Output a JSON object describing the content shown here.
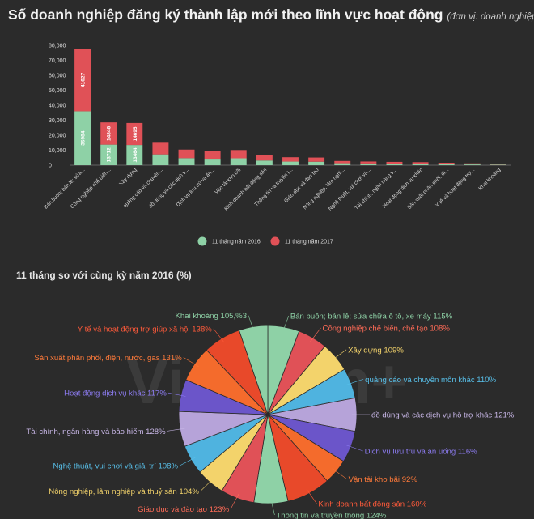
{
  "header": {
    "title": "Số doanh nghiệp đăng ký thành lập mới theo lĩnh vực hoạt động",
    "unit": "(đơn vị: doanh  nghiệp)"
  },
  "pie_title": "11 tháng so với cùng kỳ năm 2016 (%)",
  "watermark": "Vietnam+",
  "colors": {
    "s2016": "#8ed1a6",
    "s2017": "#e05157"
  },
  "chart_data": [
    {
      "type": "bar",
      "stacked": true,
      "categories": [
        "Bán buôn; bán lẻ; sửa...",
        "Công nghiệp chế biến...",
        "Xây dựng",
        "quảng cáo và chuyên...",
        "đồ dùng và các dịch v...",
        "Dịch vụ lưu trú và ăn...",
        "Vận tải kho bãi",
        "Kinh doanh bất động sản",
        "Thông tin và truyền t...",
        "Giáo dục và đào tạo",
        "Nông nghiệp, lâm nghi...",
        "Nghệ thuật, vui chơi và...",
        "Tài chính, ngân hàng v...",
        "Hoạt động dịch vụ khác",
        "Sản xuất phân phối, đi...",
        "Y tế và hoạt động trợ...",
        "Khai khoáng"
      ],
      "series": [
        {
          "name": "11 tháng năm 2016",
          "values": [
            35984,
            13712,
            13464,
            7200,
            4700,
            4300,
            4600,
            3100,
            2400,
            2300,
            1300,
            1150,
            1000,
            900,
            700,
            500,
            400
          ],
          "labels": [
            "35984",
            "13712",
            "13464"
          ]
        },
        {
          "name": "11 tháng năm 2017",
          "values": [
            41627,
            14846,
            14695,
            8300,
            5700,
            5100,
            5500,
            3800,
            2900,
            2800,
            1500,
            1300,
            1200,
            1100,
            900,
            700,
            500
          ],
          "labels": [
            "41627",
            "14846",
            "14695"
          ]
        }
      ],
      "yticks": [
        "0",
        "10,000",
        "20,000",
        "30,000",
        "40,000",
        "50,000",
        "60,000",
        "70,000",
        "80,000"
      ],
      "ylim": [
        0,
        80000
      ],
      "legend_position": "bottom"
    },
    {
      "type": "pie",
      "slices": [
        {
          "label": "Bán buôn; bán lẻ; sửa chữa ô tô, xe máy 115%",
          "value": 115,
          "color": "#8ed1a6",
          "text_color": "#8ed1a6"
        },
        {
          "label": "Công nghiệp chế biến, chế tạo 108%",
          "value": 108,
          "color": "#e05157",
          "text_color": "#ff6b57"
        },
        {
          "label": "Xây dựng 109%",
          "value": 109,
          "color": "#f3d36b",
          "text_color": "#f3d36b"
        },
        {
          "label": "quảng cáo và chuyên môn khác 110%",
          "value": 110,
          "color": "#4fb3df",
          "text_color": "#58c0ea"
        },
        {
          "label": "đồ dùng và các dịch vụ hỗ trợ khác 121%",
          "value": 121,
          "color": "#b6a3d9",
          "text_color": "#c7b6e6"
        },
        {
          "label": "Dịch vụ lưu trú và ăn uống 116%",
          "value": 116,
          "color": "#6b55c9",
          "text_color": "#8d7cf2"
        },
        {
          "label": "Vận tải kho bãi 92%",
          "value": 92,
          "color": "#f46b2c",
          "text_color": "#ff7a3a"
        },
        {
          "label": "Kinh doanh bất động sản 160%",
          "value": 160,
          "color": "#e8492a",
          "text_color": "#ff5a3a"
        },
        {
          "label": "Thông tin và truyền thông 124%",
          "value": 124,
          "color": "#8ed1a6",
          "text_color": "#8ed1a6"
        },
        {
          "label": "Giáo dục và đào tạo 123%",
          "value": 123,
          "color": "#e05157",
          "text_color": "#ff6b57"
        },
        {
          "label": "Nông nghiệp, lâm nghiệp và thuỷ sản 104%",
          "value": 104,
          "color": "#f3d36b",
          "text_color": "#f3d36b"
        },
        {
          "label": "Nghệ thuật, vui chơi và giải trí 108%",
          "value": 108,
          "color": "#4fb3df",
          "text_color": "#58c0ea"
        },
        {
          "label": "Tài chính, ngân hàng và bảo hiểm 128%",
          "value": 128,
          "color": "#b6a3d9",
          "text_color": "#c7b6e6"
        },
        {
          "label": "Hoạt động dịch vụ khác 117%",
          "value": 117,
          "color": "#6b55c9",
          "text_color": "#8d7cf2"
        },
        {
          "label": "Sản xuất phân phối, điện, nước, gas 131%",
          "value": 131,
          "color": "#f46b2c",
          "text_color": "#ff7a3a"
        },
        {
          "label": "Y tế và hoạt động trợ giúp xã hội 138%",
          "value": 138,
          "color": "#e8492a",
          "text_color": "#ff5a3a"
        },
        {
          "label": "Khai khoáng 105,%3",
          "value": 105,
          "color": "#8ed1a6",
          "text_color": "#8ed1a6"
        }
      ]
    }
  ]
}
